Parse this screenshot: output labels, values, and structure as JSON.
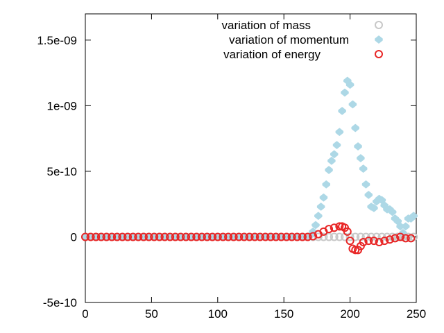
{
  "chart_data": {
    "type": "scatter",
    "title": "",
    "xlabel": "",
    "ylabel": "",
    "xlim": [
      0,
      250
    ],
    "ylim": [
      -5e-10,
      1.7e-09
    ],
    "xticks": [
      0,
      50,
      100,
      150,
      200,
      250
    ],
    "xtick_labels": [
      "0",
      "50",
      "100",
      "150",
      "200",
      "250"
    ],
    "yticks": [
      -5e-10,
      0,
      5e-10,
      1e-09,
      1.5e-09
    ],
    "ytick_labels": [
      "-5e-10",
      "0",
      "5e-10",
      "1e-09",
      "1.5e-09"
    ],
    "grid": false,
    "legend_position": "top-right",
    "series": [
      {
        "name": "variation of mass",
        "marker": "open-circle",
        "color": "#c8c8c8",
        "x": [
          0,
          4,
          8,
          12,
          16,
          20,
          24,
          28,
          32,
          36,
          40,
          44,
          48,
          52,
          56,
          60,
          64,
          68,
          72,
          76,
          80,
          84,
          88,
          92,
          96,
          100,
          104,
          108,
          112,
          116,
          120,
          124,
          128,
          132,
          136,
          140,
          144,
          148,
          152,
          156,
          160,
          164,
          168,
          172,
          176,
          180,
          184,
          188,
          192,
          196,
          200,
          204,
          208,
          212,
          216,
          220,
          224,
          228,
          232,
          236,
          240,
          244,
          248
        ],
        "y": [
          0,
          0,
          0,
          0,
          0,
          0,
          0,
          0,
          0,
          0,
          0,
          0,
          0,
          0,
          0,
          0,
          0,
          0,
          0,
          0,
          0,
          0,
          0,
          0,
          0,
          0,
          0,
          0,
          0,
          0,
          0,
          0,
          0,
          0,
          0,
          0,
          0,
          0,
          0,
          0,
          0,
          0,
          0,
          0,
          0,
          0,
          0,
          0,
          0,
          0,
          0,
          0,
          0,
          0,
          0,
          0,
          0,
          0,
          0,
          0,
          0,
          0,
          0
        ]
      },
      {
        "name": "variation of momentum",
        "marker": "filled-diamond",
        "color": "#add8e6",
        "x": [
          0,
          4,
          8,
          12,
          16,
          20,
          24,
          28,
          32,
          36,
          40,
          44,
          48,
          52,
          56,
          60,
          64,
          68,
          72,
          76,
          80,
          84,
          88,
          92,
          96,
          100,
          104,
          108,
          112,
          116,
          120,
          124,
          128,
          132,
          136,
          140,
          144,
          148,
          152,
          156,
          160,
          164,
          168,
          170,
          172,
          174,
          176,
          178,
          180,
          182,
          184,
          186,
          188,
          190,
          192,
          194,
          196,
          198,
          200,
          202,
          204,
          206,
          208,
          210,
          212,
          214,
          216,
          218,
          220,
          222,
          224,
          226,
          228,
          230,
          232,
          234,
          236,
          238,
          240,
          242,
          244,
          246,
          248
        ],
        "y": [
          0,
          0,
          0,
          0,
          0,
          0,
          0,
          0,
          0,
          0,
          0,
          0,
          0,
          0,
          0,
          0,
          0,
          0,
          0,
          0,
          0,
          0,
          0,
          0,
          0,
          0,
          0,
          0,
          0,
          0,
          0,
          0,
          0,
          0,
          0,
          0,
          0,
          0,
          0,
          0,
          0,
          0,
          0,
          1e-11,
          4e-11,
          9e-11,
          1.6e-10,
          2.3e-10,
          3e-10,
          4e-10,
          5.1e-10,
          5.8e-10,
          6.3e-10,
          7e-10,
          8e-10,
          9.6e-10,
          1.1e-09,
          1.19e-09,
          1.16e-09,
          1.01e-09,
          8.3e-10,
          6.9e-10,
          6e-10,
          5.2e-10,
          4e-10,
          3.2e-10,
          2.3e-10,
          2.2e-10,
          2.7e-10,
          2.9e-10,
          2.8e-10,
          2.4e-10,
          2.1e-10,
          2.1e-10,
          1.9e-10,
          1.4e-10,
          1.2e-10,
          8e-11,
          3e-11,
          8e-11,
          1.4e-10,
          1.4e-10,
          1.6e-10
        ]
      },
      {
        "name": "variation of energy",
        "marker": "open-circle",
        "color": "#e82626",
        "x": [
          0,
          4,
          8,
          12,
          16,
          20,
          24,
          28,
          32,
          36,
          40,
          44,
          48,
          52,
          56,
          60,
          64,
          68,
          72,
          76,
          80,
          84,
          88,
          92,
          96,
          100,
          104,
          108,
          112,
          116,
          120,
          124,
          128,
          132,
          136,
          140,
          144,
          148,
          152,
          156,
          160,
          164,
          168,
          172,
          176,
          180,
          184,
          188,
          192,
          194,
          196,
          198,
          200,
          202,
          204,
          206,
          208,
          210,
          214,
          218,
          222,
          226,
          230,
          234,
          238,
          242,
          246
        ],
        "y": [
          0,
          0,
          0,
          0,
          0,
          0,
          0,
          0,
          0,
          0,
          0,
          0,
          0,
          0,
          0,
          0,
          0,
          0,
          0,
          0,
          0,
          0,
          0,
          0,
          0,
          0,
          0,
          0,
          0,
          0,
          0,
          0,
          0,
          0,
          0,
          0,
          0,
          0,
          0,
          0,
          0,
          0,
          0,
          5e-12,
          2e-11,
          4e-11,
          6e-11,
          7e-11,
          8e-11,
          8e-11,
          7e-11,
          4e-11,
          -3e-11,
          -9e-11,
          -1e-10,
          -1e-10,
          -7e-11,
          -4e-11,
          -3e-11,
          -3e-11,
          -4e-11,
          -3e-11,
          -2e-11,
          -1e-11,
          0,
          -1e-11,
          -1e-11
        ]
      }
    ]
  }
}
